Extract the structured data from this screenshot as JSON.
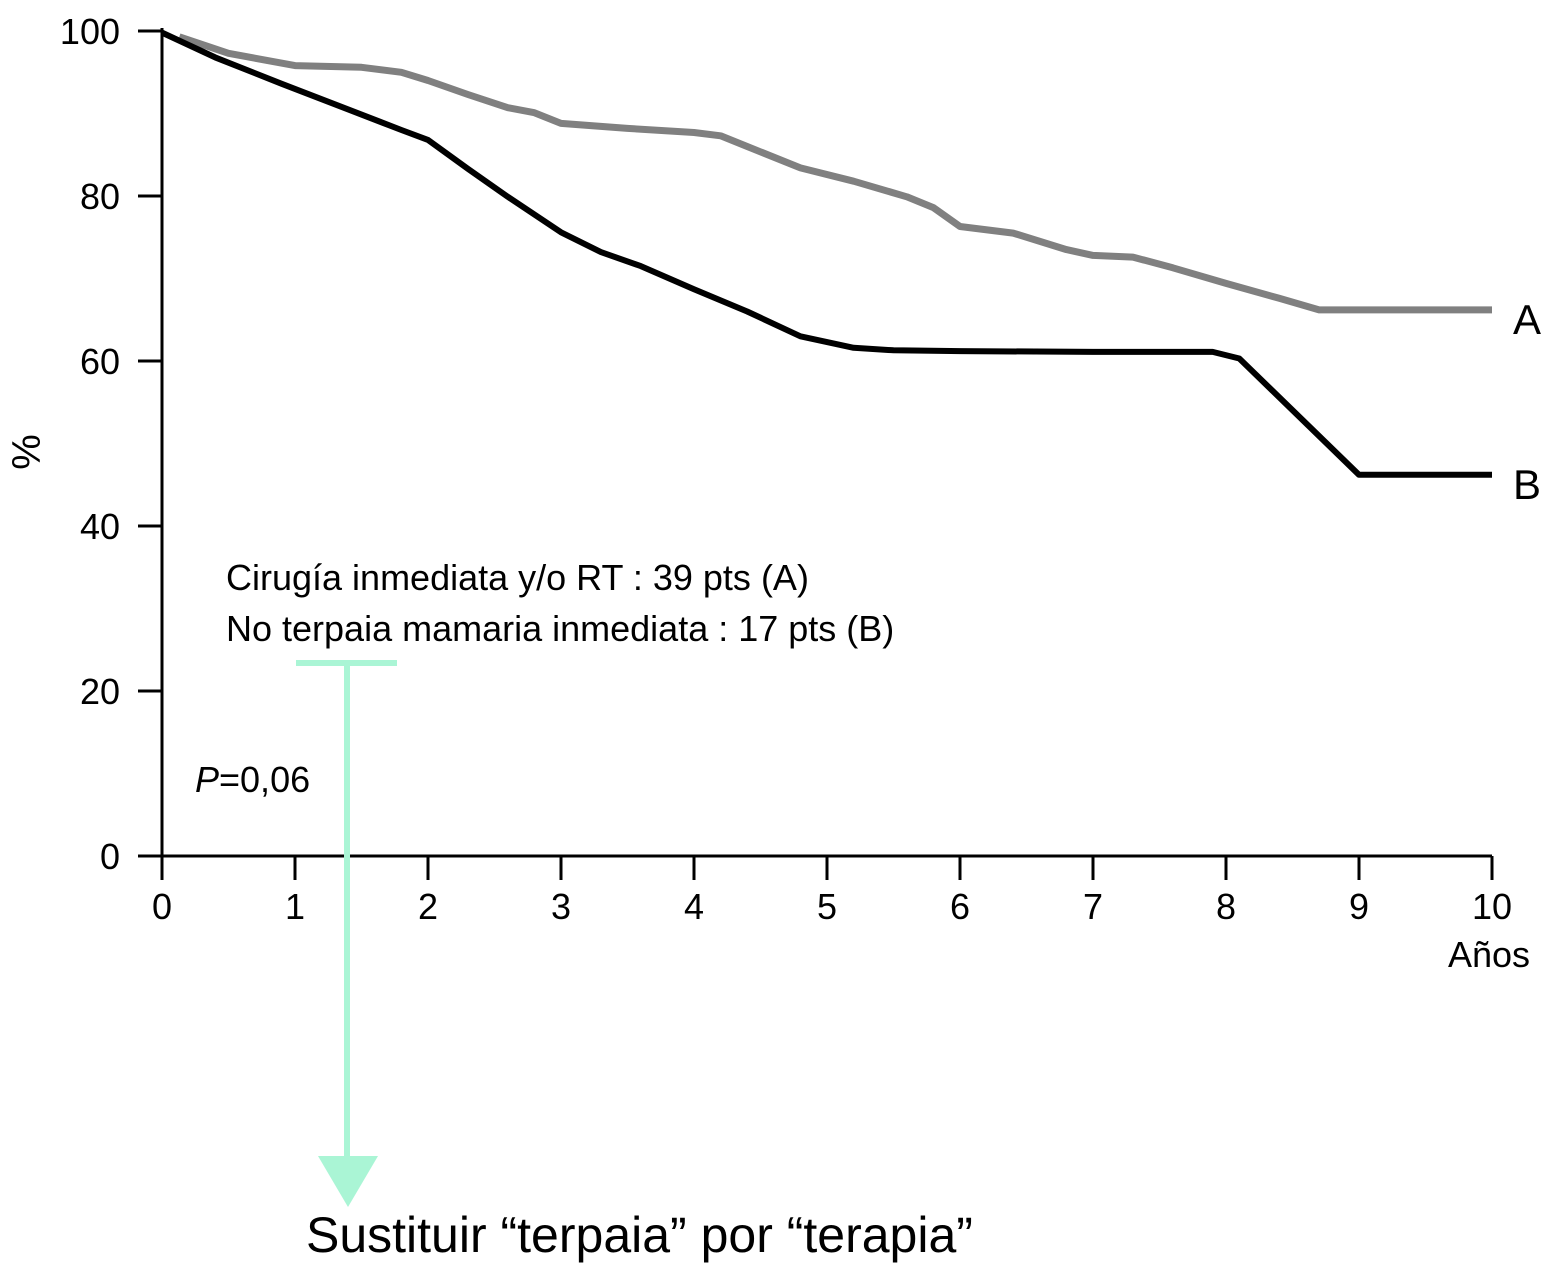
{
  "chart_data": {
    "type": "line",
    "title": "",
    "xlabel": "Años",
    "ylabel": "%",
    "xlim": [
      0,
      10
    ],
    "ylim": [
      0,
      100
    ],
    "x_ticks": [
      "0",
      "1",
      "2",
      "3",
      "4",
      "5",
      "6",
      "7",
      "8",
      "9",
      "10"
    ],
    "y_ticks": [
      "0",
      "20",
      "40",
      "60",
      "80",
      "100"
    ],
    "grid": false,
    "series": [
      {
        "name": "A",
        "color": "#808080",
        "points": [
          [
            0.13,
            99.3
          ],
          [
            0.5,
            97.3
          ],
          [
            1.0,
            95.8
          ],
          [
            1.5,
            95.6
          ],
          [
            1.8,
            95.0
          ],
          [
            2.0,
            94.0
          ],
          [
            2.3,
            92.3
          ],
          [
            2.6,
            90.7
          ],
          [
            2.8,
            90.1
          ],
          [
            3.0,
            88.8
          ],
          [
            3.5,
            88.2
          ],
          [
            4.0,
            87.7
          ],
          [
            4.2,
            87.3
          ],
          [
            4.4,
            86.0
          ],
          [
            4.8,
            83.4
          ],
          [
            5.2,
            81.8
          ],
          [
            5.6,
            79.9
          ],
          [
            5.8,
            78.6
          ],
          [
            6.0,
            76.3
          ],
          [
            6.4,
            75.5
          ],
          [
            6.8,
            73.5
          ],
          [
            7.0,
            72.8
          ],
          [
            7.3,
            72.6
          ],
          [
            7.6,
            71.3
          ],
          [
            8.0,
            69.4
          ],
          [
            8.4,
            67.6
          ],
          [
            8.7,
            66.2
          ],
          [
            10.0,
            66.2
          ]
        ]
      },
      {
        "name": "B",
        "color": "#000000",
        "points": [
          [
            0.0,
            99.8
          ],
          [
            0.4,
            96.8
          ],
          [
            0.9,
            93.6
          ],
          [
            1.4,
            90.5
          ],
          [
            1.8,
            88.0
          ],
          [
            2.0,
            86.8
          ],
          [
            2.3,
            83.3
          ],
          [
            2.6,
            79.9
          ],
          [
            3.0,
            75.6
          ],
          [
            3.3,
            73.2
          ],
          [
            3.6,
            71.5
          ],
          [
            4.0,
            68.7
          ],
          [
            4.4,
            66.0
          ],
          [
            4.8,
            63.0
          ],
          [
            5.2,
            61.6
          ],
          [
            5.5,
            61.3
          ],
          [
            6.0,
            61.2
          ],
          [
            7.0,
            61.1
          ],
          [
            7.9,
            61.1
          ],
          [
            8.1,
            60.3
          ],
          [
            9.0,
            46.2
          ],
          [
            10.0,
            46.2
          ]
        ]
      }
    ],
    "legend_text": [
      "Cirugía inmediata y/o RT : 39 pts (A)",
      "No terpaia mamaria inmediata : 17 pts (B)"
    ],
    "p_value": {
      "symbol": "P",
      "value": "=0,06"
    },
    "series_labels": [
      "A",
      "B"
    ],
    "annotation": {
      "text": "Sustituir “terpaia” por “terapia”",
      "color": "#aaf5d5"
    }
  }
}
